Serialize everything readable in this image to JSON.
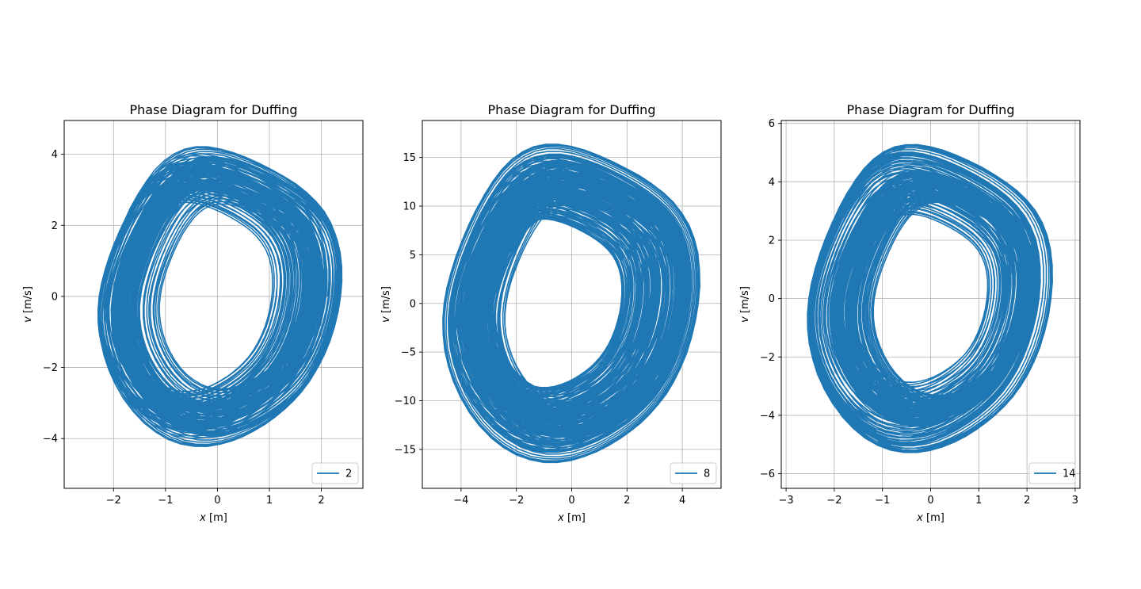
{
  "figure": {
    "background": "#ffffff"
  },
  "chart_data": [
    {
      "type": "line",
      "title": "Phase Diagram for Duffing",
      "xlabel_var": "x",
      "xlabel_unit": " [m]",
      "ylabel_var": "v",
      "ylabel_unit": " [m/s]",
      "xlim": [
        -2.95,
        2.8
      ],
      "ylim": [
        -5.4,
        4.95
      ],
      "xticks": [
        -2,
        -1,
        0,
        1,
        2
      ],
      "xtick_labels": [
        "−2",
        "−1",
        "0",
        "1",
        "2"
      ],
      "yticks": [
        -4,
        -2,
        0,
        2,
        4
      ],
      "ytick_labels": [
        "−4",
        "−2",
        "0",
        "2",
        "4"
      ],
      "grid": true,
      "legend_position": "lower-right",
      "color": "#1f77b4",
      "series": [
        {
          "name": "2"
        }
      ],
      "trajectory_params": {
        "x_extent": 2.55,
        "v_extent": 4.6,
        "inner_x": 0.35,
        "inner_v": 0.7,
        "turns": 140,
        "seed": 2
      }
    },
    {
      "type": "line",
      "title": "Phase Diagram for Duffing",
      "xlabel_var": "x",
      "xlabel_unit": " [m]",
      "ylabel_var": "v",
      "ylabel_unit": " [m/s]",
      "xlim": [
        -5.4,
        5.4
      ],
      "ylim": [
        -19.0,
        18.8
      ],
      "xticks": [
        -4,
        -2,
        0,
        2,
        4
      ],
      "xtick_labels": [
        "−4",
        "−2",
        "0",
        "2",
        "4"
      ],
      "yticks": [
        -15,
        -10,
        -5,
        0,
        5,
        10,
        15
      ],
      "ytick_labels": [
        "−15",
        "−10",
        "−5",
        "0",
        "5",
        "10",
        "15"
      ],
      "grid": true,
      "legend_position": "lower-right",
      "color": "#1f77b4",
      "series": [
        {
          "name": "8"
        }
      ],
      "trajectory_params": {
        "x_extent": 4.9,
        "v_extent": 17.2,
        "inner_x": 0.6,
        "inner_v": 2.2,
        "turns": 190,
        "seed": 8
      }
    },
    {
      "type": "line",
      "title": "Phase Diagram for Duffing",
      "xlabel_var": "x",
      "xlabel_unit": " [m]",
      "ylabel_var": "v",
      "ylabel_unit": " [m/s]",
      "xlim": [
        -3.1,
        3.1
      ],
      "ylim": [
        -6.5,
        6.1
      ],
      "xticks": [
        -3,
        -2,
        -1,
        0,
        1,
        2,
        3
      ],
      "xtick_labels": [
        "−3",
        "−2",
        "−1",
        "0",
        "1",
        "2",
        "3"
      ],
      "yticks": [
        -6,
        -4,
        -2,
        0,
        2,
        4,
        6
      ],
      "ytick_labels": [
        "−6",
        "−4",
        "−2",
        "0",
        "2",
        "4",
        "6"
      ],
      "grid": true,
      "legend_position": "lower-right",
      "color": "#1f77b4",
      "series": [
        {
          "name": "14"
        }
      ],
      "trajectory_params": {
        "x_extent": 2.6,
        "v_extent": 5.4,
        "inner_x": 0.4,
        "inner_v": 0.8,
        "turns": 150,
        "seed": 14
      }
    }
  ]
}
